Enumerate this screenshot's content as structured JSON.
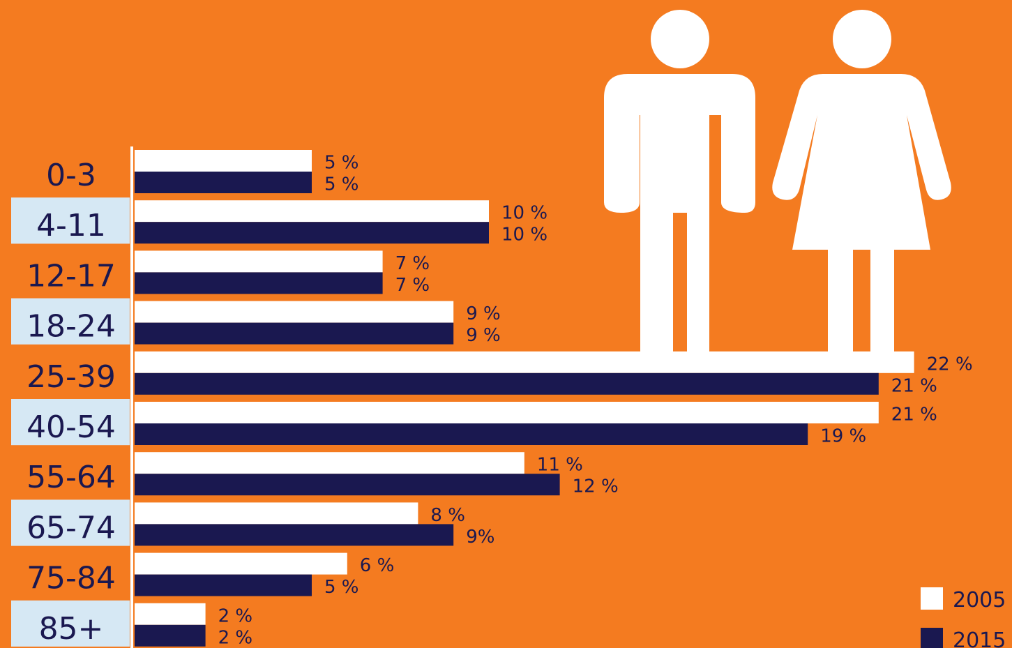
{
  "colors": {
    "background": "#F47B20",
    "bar_2005": "#FFFFFF",
    "bar_2015": "#1A1850",
    "label_band": "#D6E8F4",
    "label_text": "#1A1850",
    "value_text": "#1A1850",
    "pictogram": "#FFFFFF"
  },
  "icons": {
    "man": "man-pictogram-icon",
    "woman": "woman-pictogram-icon"
  },
  "chart_data": {
    "type": "bar",
    "orientation": "horizontal",
    "categories": [
      "0-3",
      "4-11",
      "12-17",
      "18-24",
      "25-39",
      "40-54",
      "55-64",
      "65-74",
      "75-84",
      "85+"
    ],
    "series": [
      {
        "name": "2005",
        "color": "#FFFFFF",
        "values": [
          5,
          10,
          7,
          9,
          22,
          21,
          11,
          8,
          6,
          2
        ],
        "labels": [
          "5 %",
          "10 %",
          "7 %",
          "9 %",
          "22 %",
          "21 %",
          "11 %",
          "8 %",
          "6 %",
          "2 %"
        ]
      },
      {
        "name": "2015",
        "color": "#1A1850",
        "values": [
          5,
          10,
          7,
          9,
          21,
          19,
          12,
          9,
          5,
          2
        ],
        "labels": [
          "5 %",
          "10 %",
          "7 %",
          "9 %",
          "21 %",
          "19 %",
          "12 %",
          "9%",
          "5 %",
          "2 %"
        ]
      }
    ],
    "xlim": [
      0,
      22
    ],
    "legend": {
      "position": "bottom-right",
      "entries": [
        "2005",
        "2015"
      ]
    }
  }
}
